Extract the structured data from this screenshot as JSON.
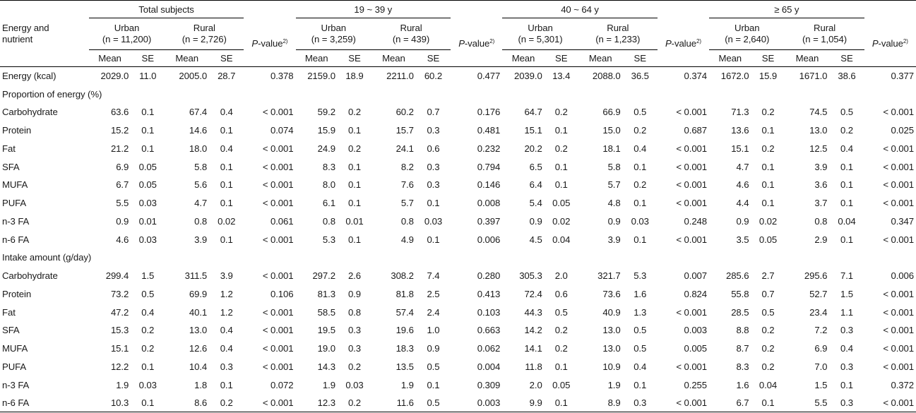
{
  "groups": [
    "Total subjects",
    "19 ~ 39 y",
    "40 ~ 64 y",
    "≥ 65 y"
  ],
  "row_header": "Energy and\nnutrient",
  "subgroups": [
    {
      "name": "Urban",
      "n": "(n = 11,200)"
    },
    {
      "name": "Rural",
      "n": "(n = 2,726)"
    },
    {
      "name": "Urban",
      "n": "(n = 3,259)"
    },
    {
      "name": "Rural",
      "n": "(n = 439)"
    },
    {
      "name": "Urban",
      "n": "(n = 5,301)"
    },
    {
      "name": "Rural",
      "n": "(n = 1,233)"
    },
    {
      "name": "Urban",
      "n": "(n = 2,640)"
    },
    {
      "name": "Rural",
      "n": "(n = 1,054)"
    }
  ],
  "pvalue_label": "-value",
  "pvalue_p": "P",
  "pvalue_sup": "2)",
  "mean_label": "Mean",
  "se_label": "SE",
  "rows": [
    {
      "type": "data",
      "label": "Energy (kcal)",
      "cells": [
        "2029.0",
        "11.0",
        "2005.0",
        "28.7",
        "0.378",
        "2159.0",
        "18.9",
        "2211.0",
        "60.2",
        "0.477",
        "2039.0",
        "13.4",
        "2088.0",
        "36.5",
        "0.374",
        "1672.0",
        "15.9",
        "1671.0",
        "38.6",
        "0.377"
      ]
    },
    {
      "type": "section",
      "label": "Proportion of energy (%)"
    },
    {
      "type": "data",
      "label": "Carbohydrate",
      "cells": [
        "63.6",
        "0.1",
        "67.4",
        "0.4",
        "< 0.001",
        "59.2",
        "0.2",
        "60.2",
        "0.7",
        "0.176",
        "64.7",
        "0.2",
        "66.9",
        "0.5",
        "< 0.001",
        "71.3",
        "0.2",
        "74.5",
        "0.5",
        "< 0.001"
      ]
    },
    {
      "type": "data",
      "label": "Protein",
      "cells": [
        "15.2",
        "0.1",
        "14.6",
        "0.1",
        "0.074",
        "15.9",
        "0.1",
        "15.7",
        "0.3",
        "0.481",
        "15.1",
        "0.1",
        "15.0",
        "0.2",
        "0.687",
        "13.6",
        "0.1",
        "13.0",
        "0.2",
        "0.025"
      ]
    },
    {
      "type": "data",
      "label": "Fat",
      "cells": [
        "21.2",
        "0.1",
        "18.0",
        "0.4",
        "< 0.001",
        "24.9",
        "0.2",
        "24.1",
        "0.6",
        "0.232",
        "20.2",
        "0.2",
        "18.1",
        "0.4",
        "< 0.001",
        "15.1",
        "0.2",
        "12.5",
        "0.4",
        "< 0.001"
      ]
    },
    {
      "type": "data",
      "label": "SFA",
      "cells": [
        "6.9",
        "0.05",
        "5.8",
        "0.1",
        "< 0.001",
        "8.3",
        "0.1",
        "8.2",
        "0.3",
        "0.794",
        "6.5",
        "0.1",
        "5.8",
        "0.1",
        "< 0.001",
        "4.7",
        "0.1",
        "3.9",
        "0.1",
        "< 0.001"
      ]
    },
    {
      "type": "data",
      "label": "MUFA",
      "cells": [
        "6.7",
        "0.05",
        "5.6",
        "0.1",
        "< 0.001",
        "8.0",
        "0.1",
        "7.6",
        "0.3",
        "0.146",
        "6.4",
        "0.1",
        "5.7",
        "0.2",
        "< 0.001",
        "4.6",
        "0.1",
        "3.6",
        "0.1",
        "< 0.001"
      ]
    },
    {
      "type": "data",
      "label": "PUFA",
      "cells": [
        "5.5",
        "0.03",
        "4.7",
        "0.1",
        "< 0.001",
        "6.1",
        "0.1",
        "5.7",
        "0.1",
        "0.008",
        "5.4",
        "0.05",
        "4.8",
        "0.1",
        "< 0.001",
        "4.4",
        "0.1",
        "3.7",
        "0.1",
        "< 0.001"
      ]
    },
    {
      "type": "data",
      "label": "n-3 FA",
      "cells": [
        "0.9",
        "0.01",
        "0.8",
        "0.02",
        "0.061",
        "0.8",
        "0.01",
        "0.8",
        "0.03",
        "0.397",
        "0.9",
        "0.02",
        "0.9",
        "0.03",
        "0.248",
        "0.9",
        "0.02",
        "0.8",
        "0.04",
        "0.347"
      ]
    },
    {
      "type": "data",
      "label": "n-6 FA",
      "cells": [
        "4.6",
        "0.03",
        "3.9",
        "0.1",
        "< 0.001",
        "5.3",
        "0.1",
        "4.9",
        "0.1",
        "0.006",
        "4.5",
        "0.04",
        "3.9",
        "0.1",
        "< 0.001",
        "3.5",
        "0.05",
        "2.9",
        "0.1",
        "< 0.001"
      ]
    },
    {
      "type": "section",
      "label": "Intake amount (g/day)"
    },
    {
      "type": "data",
      "label": "Carbohydrate",
      "cells": [
        "299.4",
        "1.5",
        "311.5",
        "3.9",
        "< 0.001",
        "297.2",
        "2.6",
        "308.2",
        "7.4",
        "0.280",
        "305.3",
        "2.0",
        "321.7",
        "5.3",
        "0.007",
        "285.6",
        "2.7",
        "295.6",
        "7.1",
        "0.006"
      ]
    },
    {
      "type": "data",
      "label": "Protein",
      "cells": [
        "73.2",
        "0.5",
        "69.9",
        "1.2",
        "0.106",
        "81.3",
        "0.9",
        "81.8",
        "2.5",
        "0.413",
        "72.4",
        "0.6",
        "73.6",
        "1.6",
        "0.824",
        "55.8",
        "0.7",
        "52.7",
        "1.5",
        "< 0.001"
      ]
    },
    {
      "type": "data",
      "label": "Fat",
      "cells": [
        "47.2",
        "0.4",
        "40.1",
        "1.2",
        "< 0.001",
        "58.5",
        "0.8",
        "57.4",
        "2.4",
        "0.103",
        "44.3",
        "0.5",
        "40.9",
        "1.3",
        "< 0.001",
        "28.5",
        "0.5",
        "23.4",
        "1.1",
        "< 0.001"
      ]
    },
    {
      "type": "data",
      "label": "SFA",
      "cells": [
        "15.3",
        "0.2",
        "13.0",
        "0.4",
        "< 0.001",
        "19.5",
        "0.3",
        "19.6",
        "1.0",
        "0.663",
        "14.2",
        "0.2",
        "13.0",
        "0.5",
        "0.003",
        "8.8",
        "0.2",
        "7.2",
        "0.3",
        "< 0.001"
      ]
    },
    {
      "type": "data",
      "label": "MUFA",
      "cells": [
        "15.1",
        "0.2",
        "12.6",
        "0.4",
        "< 0.001",
        "19.0",
        "0.3",
        "18.3",
        "0.9",
        "0.062",
        "14.1",
        "0.2",
        "13.0",
        "0.5",
        "0.005",
        "8.7",
        "0.2",
        "6.9",
        "0.4",
        "< 0.001"
      ]
    },
    {
      "type": "data",
      "label": "PUFA",
      "cells": [
        "12.2",
        "0.1",
        "10.4",
        "0.3",
        "< 0.001",
        "14.3",
        "0.2",
        "13.5",
        "0.5",
        "0.004",
        "11.8",
        "0.1",
        "10.9",
        "0.4",
        "< 0.001",
        "8.3",
        "0.2",
        "7.0",
        "0.3",
        "< 0.001"
      ]
    },
    {
      "type": "data",
      "label": "n-3 FA",
      "cells": [
        "1.9",
        "0.03",
        "1.8",
        "0.1",
        "0.072",
        "1.9",
        "0.03",
        "1.9",
        "0.1",
        "0.309",
        "2.0",
        "0.05",
        "1.9",
        "0.1",
        "0.255",
        "1.6",
        "0.04",
        "1.5",
        "0.1",
        "0.372"
      ]
    },
    {
      "type": "data",
      "label": "n-6 FA",
      "cells": [
        "10.3",
        "0.1",
        "8.6",
        "0.2",
        "< 0.001",
        "12.3",
        "0.2",
        "11.6",
        "0.5",
        "0.003",
        "9.9",
        "0.1",
        "8.9",
        "0.3",
        "< 0.001",
        "6.7",
        "0.1",
        "5.5",
        "0.3",
        "< 0.001"
      ]
    }
  ]
}
